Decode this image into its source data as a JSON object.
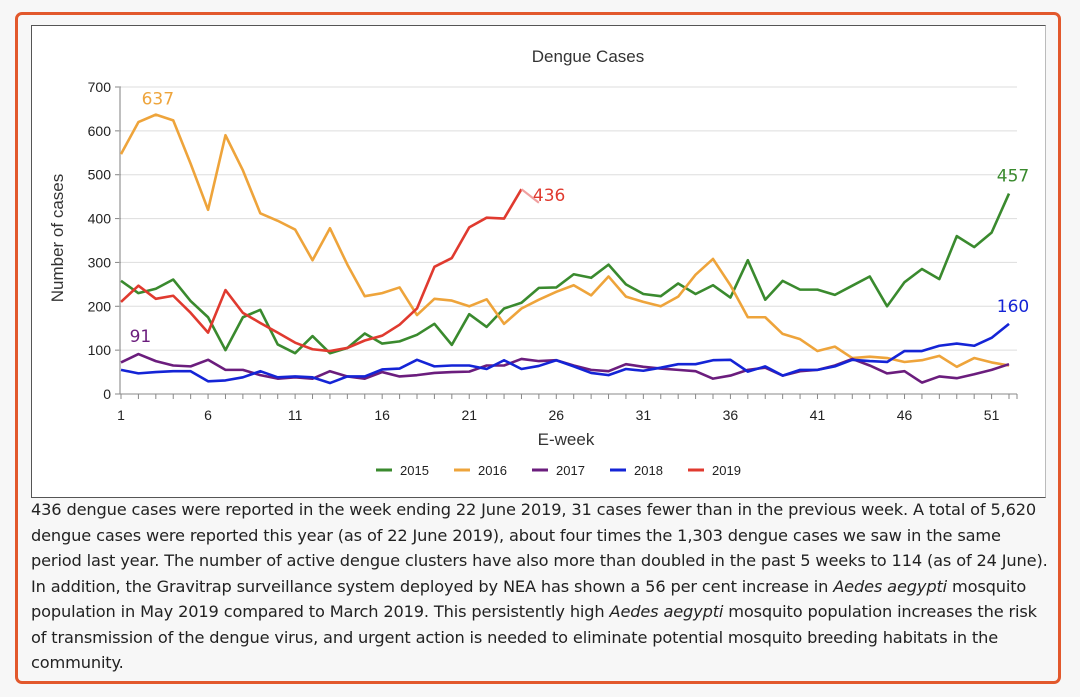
{
  "chart_data": {
    "type": "line",
    "title": "Dengue Cases",
    "xlabel": "E-week",
    "ylabel": "Number of cases",
    "ylim": [
      0,
      700
    ],
    "xlim": [
      1,
      52
    ],
    "yticks": [
      0,
      100,
      200,
      300,
      400,
      500,
      600,
      700
    ],
    "xticks": [
      1,
      6,
      11,
      16,
      21,
      26,
      31,
      36,
      41,
      46,
      51
    ],
    "grid": true,
    "legend_position": "bottom",
    "series": [
      {
        "name": "2015",
        "color": "#3a8a2e",
        "values": [
          258,
          230,
          240,
          261,
          212,
          175,
          100,
          175,
          192,
          113,
          93,
          132,
          93,
          105,
          138,
          115,
          120,
          135,
          160,
          112,
          182,
          153,
          195,
          208,
          242,
          243,
          273,
          265,
          295,
          250,
          228,
          223,
          252,
          228,
          248,
          220,
          305,
          215,
          258,
          238,
          238,
          226,
          247,
          268,
          200,
          255,
          285,
          262,
          360,
          335,
          368,
          457
        ],
        "annotations": [
          {
            "week": 52,
            "label": "457"
          }
        ]
      },
      {
        "name": "2016",
        "color": "#eea43b",
        "values": [
          547,
          620,
          637,
          624,
          525,
          420,
          590,
          510,
          412,
          395,
          375,
          305,
          378,
          295,
          223,
          230,
          243,
          180,
          217,
          213,
          200,
          216,
          160,
          195,
          215,
          233,
          248,
          225,
          268,
          222,
          210,
          200,
          222,
          272,
          308,
          248,
          175,
          175,
          137,
          125,
          98,
          108,
          82,
          85,
          82,
          73,
          77,
          87,
          62,
          82,
          72,
          65
        ],
        "annotations": [
          {
            "week": 3,
            "label": "637"
          }
        ]
      },
      {
        "name": "2017",
        "color": "#6b1d7d",
        "values": [
          72,
          91,
          75,
          65,
          63,
          78,
          55,
          55,
          43,
          35,
          38,
          35,
          52,
          40,
          35,
          50,
          40,
          43,
          48,
          50,
          51,
          65,
          65,
          80,
          75,
          77,
          65,
          55,
          52,
          68,
          62,
          58,
          55,
          52,
          35,
          42,
          55,
          60,
          42,
          52,
          55,
          65,
          80,
          65,
          47,
          52,
          26,
          40,
          36,
          45,
          55,
          68
        ],
        "annotations": [
          {
            "week": 2,
            "label": "91"
          }
        ]
      },
      {
        "name": "2018",
        "color": "#1424d6",
        "values": [
          55,
          47,
          50,
          52,
          52,
          29,
          31,
          38,
          52,
          38,
          40,
          38,
          25,
          40,
          40,
          56,
          58,
          78,
          63,
          65,
          65,
          57,
          77,
          57,
          64,
          77,
          63,
          48,
          43,
          57,
          53,
          60,
          68,
          68,
          77,
          78,
          51,
          63,
          42,
          55,
          55,
          63,
          78,
          75,
          73,
          98,
          98,
          110,
          115,
          110,
          128,
          160
        ],
        "annotations": [
          {
            "week": 52,
            "label": "160"
          }
        ]
      },
      {
        "name": "2019",
        "color": "#e03a2f",
        "values": [
          210,
          247,
          217,
          224,
          185,
          140,
          237,
          185,
          162,
          140,
          117,
          102,
          98,
          105,
          122,
          133,
          158,
          195,
          290,
          310,
          380,
          402,
          400,
          467,
          436
        ],
        "annotations": [
          {
            "week": 25,
            "label": "436"
          }
        ]
      }
    ]
  },
  "caption": {
    "segments": [
      {
        "text": "436 dengue cases were reported in the week ending 22 June 2019, 31 cases fewer than in the previous week. A total of 5,620 dengue cases were reported this year (as of 22 June 2019), about four times the 1,303 dengue cases we saw in the same period last year. The number of active dengue clusters have also more than doubled in the past 5 weeks to 114 (as of 24 June). In addition, the Gravitrap surveillance system deployed by NEA has shown a 56 per cent increase in ",
        "italic": false
      },
      {
        "text": "Aedes aegypti",
        "italic": true
      },
      {
        "text": " mosquito population in May 2019 compared to March 2019. This persistently high ",
        "italic": false
      },
      {
        "text": "Aedes aegypti",
        "italic": true
      },
      {
        "text": " mosquito population increases the risk of transmission of the dengue virus, and urgent action is needed to eliminate potential mosquito breeding habitats in the community.",
        "italic": false
      }
    ]
  },
  "colors": {
    "frame_border": "#e2582c",
    "gridline": "#dddddd",
    "axis": "#888888",
    "text": "#333333"
  }
}
